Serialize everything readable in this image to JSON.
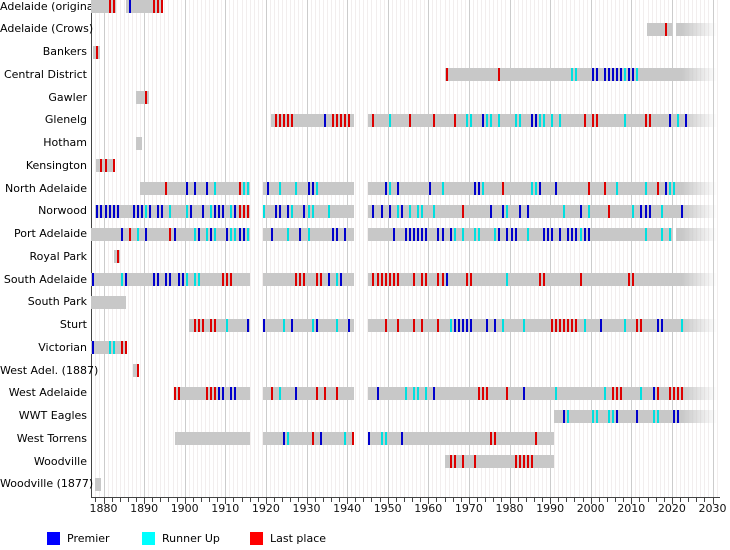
{
  "chart_data": {
    "type": "timeline",
    "x_axis": {
      "tick_label_years": [
        1880,
        1890,
        1900,
        1910,
        1920,
        1930,
        1940,
        1950,
        1960,
        1970,
        1980,
        1990,
        2000,
        2010,
        2020,
        2030
      ],
      "minor_tick_step": 2,
      "range": [
        1877,
        2031
      ]
    },
    "legend": [
      {
        "label": "Premier",
        "color": "#0000ff"
      },
      {
        "label": "Runner Up",
        "color": "#00ffff"
      },
      {
        "label": "Last place",
        "color": "#ff0000"
      }
    ],
    "mark_colors": {
      "premier": "#0000cc",
      "runner_up": "#00e0e0",
      "last": "#dd0000"
    },
    "bar_color": "#c8c8c8",
    "grid_minor_color": "#f2eeee",
    "grid_major_color": "#cccccc",
    "teams": [
      {
        "name": "Adelaide (original)",
        "segments": [
          [
            1877,
            1883
          ],
          [
            1885.5,
            1894.7
          ]
        ],
        "fade": false,
        "premier": [
          1886
        ],
        "runner_up": [],
        "last": [
          1881,
          1882,
          1892,
          1893,
          1894
        ]
      },
      {
        "name": "Adelaide (Crows)",
        "segments": [
          [
            2013.8,
            2020
          ],
          [
            2021,
            2022.5
          ]
        ],
        "fade": true,
        "premier": [],
        "runner_up": [],
        "last": [
          2018
        ]
      },
      {
        "name": "Bankers",
        "segments": [
          [
            1877.4,
            1879.2
          ]
        ],
        "fade": false,
        "premier": [],
        "runner_up": [],
        "last": [
          1878
        ]
      },
      {
        "name": "Central District",
        "segments": [
          [
            1964,
            2022.5
          ]
        ],
        "fade": true,
        "premier": [
          2000,
          2001,
          2003,
          2004,
          2005,
          2006,
          2007,
          2009,
          2010
        ],
        "runner_up": [
          1995,
          1996,
          2008,
          2011
        ],
        "last": [
          1964,
          1977
        ]
      },
      {
        "name": "Gawler",
        "segments": [
          [
            1888,
            1891.3
          ]
        ],
        "fade": false,
        "premier": [],
        "runner_up": [],
        "last": [
          1890
        ]
      },
      {
        "name": "Glenelg",
        "segments": [
          [
            1921.3,
            1941.7
          ],
          [
            1945.2,
            2022.5
          ]
        ],
        "fade": true,
        "premier": [
          1934,
          1973,
          1985,
          1986,
          2019,
          2023
        ],
        "runner_up": [
          1950,
          1969,
          1970,
          1974,
          1975,
          1977,
          1981,
          1982,
          1987,
          1988,
          1990,
          1992,
          2008,
          2021
        ],
        "last": [
          1922,
          1923,
          1924,
          1925,
          1926,
          1936,
          1937,
          1938,
          1939,
          1940,
          1946,
          1955,
          1961,
          1966,
          1998,
          2000,
          2001,
          2013,
          2014
        ]
      },
      {
        "name": "Hotham",
        "segments": [
          [
            1888,
            1889.4
          ]
        ],
        "fade": false,
        "premier": [],
        "runner_up": [],
        "last": []
      },
      {
        "name": "Kensington",
        "segments": [
          [
            1878.2,
            1882.6
          ]
        ],
        "fade": false,
        "premier": [],
        "runner_up": [],
        "last": [
          1879,
          1880,
          1882
        ]
      },
      {
        "name": "North Adelaide",
        "segments": [
          [
            1889,
            1916.2
          ],
          [
            1919.3,
            1941.7
          ],
          [
            1945.2,
            2022.5
          ]
        ],
        "fade": true,
        "premier": [
          1900,
          1902,
          1905,
          1920,
          1930,
          1931,
          1949,
          1952,
          1960,
          1971,
          1972,
          1987,
          1991,
          2018
        ],
        "runner_up": [
          1907,
          1914,
          1915,
          1923,
          1927,
          1932,
          1950,
          1963,
          1973,
          1985,
          1986,
          2006,
          2013,
          2019,
          2020
        ],
        "last": [
          1895,
          1913,
          1978,
          1999,
          2003,
          2016
        ]
      },
      {
        "name": "Norwood",
        "segments": [
          [
            1878,
            1916.2
          ],
          [
            1919.3,
            1941.7
          ],
          [
            1945.2,
            2022.5
          ]
        ],
        "fade": true,
        "premier": [
          1878,
          1879,
          1880,
          1881,
          1882,
          1883,
          1887,
          1888,
          1889,
          1891,
          1893,
          1894,
          1901,
          1904,
          1907,
          1908,
          1909,
          1912,
          1922,
          1923,
          1925,
          1929,
          1946,
          1948,
          1950,
          1953,
          1975,
          1978,
          1982,
          1984,
          1997,
          2012,
          2013,
          2014,
          2022
        ],
        "runner_up": [
          1890,
          1896,
          1900,
          1906,
          1911,
          1919,
          1926,
          1930,
          1931,
          1935,
          1952,
          1955,
          1957,
          1958,
          1961,
          1979,
          1993,
          1999,
          2010,
          2017
        ],
        "last": [
          1913,
          1914,
          1915,
          1968,
          2004
        ]
      },
      {
        "name": "Port Adelaide",
        "segments": [
          [
            1877,
            1916.2
          ],
          [
            1919.3,
            1941.7
          ],
          [
            1945.2,
            2020
          ],
          [
            2021,
            2022.5
          ]
        ],
        "fade": true,
        "premier": [
          1884,
          1890,
          1897,
          1903,
          1906,
          1910,
          1913,
          1914,
          1921,
          1928,
          1936,
          1937,
          1939,
          1951,
          1954,
          1955,
          1956,
          1957,
          1958,
          1959,
          1962,
          1963,
          1965,
          1977,
          1979,
          1980,
          1981,
          1988,
          1989,
          1990,
          1992,
          1994,
          1995,
          1996,
          1998,
          1999
        ],
        "runner_up": [
          1888,
          1902,
          1905,
          1907,
          1911,
          1912,
          1915,
          1925,
          1930,
          1966,
          1968,
          1971,
          1972,
          1976,
          1984,
          1997,
          2013,
          2017,
          2019
        ],
        "last": [
          1886,
          1896
        ]
      },
      {
        "name": "Royal Park",
        "segments": [
          [
            1882.5,
            1884
          ]
        ],
        "fade": false,
        "premier": [],
        "runner_up": [],
        "last": [
          1883
        ]
      },
      {
        "name": "South Adelaide",
        "segments": [
          [
            1877,
            1916.2
          ],
          [
            1919.3,
            1941.7
          ],
          [
            1945.2,
            2022.5
          ]
        ],
        "fade": true,
        "premier": [
          1877,
          1885,
          1892,
          1893,
          1895,
          1896,
          1898,
          1899,
          1935,
          1938,
          1964
        ],
        "runner_up": [
          1884,
          1900,
          1902,
          1903,
          1937,
          1979
        ],
        "last": [
          1909,
          1910,
          1911,
          1927,
          1928,
          1929,
          1932,
          1933,
          1946,
          1947,
          1948,
          1949,
          1950,
          1951,
          1952,
          1956,
          1958,
          1959,
          1962,
          1963,
          1969,
          1970,
          1987,
          1988,
          1997,
          2009,
          2010
        ]
      },
      {
        "name": "South Park",
        "segments": [
          [
            1877,
            1885.5
          ]
        ],
        "fade": false,
        "premier": [],
        "runner_up": [],
        "last": []
      },
      {
        "name": "Sturt",
        "segments": [
          [
            1901,
            1916.2
          ],
          [
            1919.3,
            1941.7
          ],
          [
            1945.2,
            2022.5
          ]
        ],
        "fade": true,
        "premier": [
          1915,
          1919,
          1926,
          1932,
          1940,
          1966,
          1967,
          1968,
          1969,
          1970,
          1974,
          1976,
          2002,
          2016,
          2017
        ],
        "runner_up": [
          1910,
          1924,
          1931,
          1937,
          1965,
          1978,
          1983,
          1998,
          2008,
          2022
        ],
        "last": [
          1902,
          1903,
          1904,
          1906,
          1907,
          1949,
          1952,
          1956,
          1958,
          1962,
          1990,
          1991,
          1992,
          1993,
          1994,
          1995,
          1996,
          2011,
          2012
        ]
      },
      {
        "name": "Victorian",
        "segments": [
          [
            1877,
            1885.5
          ]
        ],
        "fade": false,
        "premier": [
          1877
        ],
        "runner_up": [
          1881,
          1882
        ],
        "last": [
          1884,
          1885
        ]
      },
      {
        "name": "West Adel. (1887)",
        "segments": [
          [
            1887.3,
            1888.8
          ]
        ],
        "fade": false,
        "premier": [],
        "runner_up": [],
        "last": [
          1888
        ]
      },
      {
        "name": "West Adelaide",
        "segments": [
          [
            1897.5,
            1916.2
          ],
          [
            1919.3,
            1941.7
          ],
          [
            1945.2,
            2022.5
          ]
        ],
        "fade": true,
        "premier": [
          1908,
          1909,
          1911,
          1912,
          1927,
          1947,
          1961,
          1983,
          2015
        ],
        "runner_up": [
          1923,
          1954,
          1956,
          1957,
          1959,
          1991,
          2003,
          2012
        ],
        "last": [
          1897,
          1898,
          1905,
          1906,
          1907,
          1921,
          1932,
          1934,
          1937,
          1972,
          1973,
          1974,
          1979,
          2005,
          2006,
          2007,
          2016,
          2019,
          2020,
          2021,
          2022
        ]
      },
      {
        "name": "WWT Eagles",
        "segments": [
          [
            1991,
            2022.5
          ]
        ],
        "fade": true,
        "premier": [
          1993,
          2006,
          2011,
          2020,
          2021
        ],
        "runner_up": [
          1994,
          2000,
          2001,
          2004,
          2005,
          2015,
          2016
        ],
        "last": []
      },
      {
        "name": "West Torrens",
        "segments": [
          [
            1897.5,
            1916.2
          ],
          [
            1919.3,
            1941.7
          ],
          [
            1945.2,
            1991
          ]
        ],
        "fade": false,
        "premier": [
          1924,
          1933,
          1945,
          1953
        ],
        "runner_up": [
          1925,
          1939,
          1948,
          1949
        ],
        "last": [
          1931,
          1941,
          1975,
          1976,
          1986
        ]
      },
      {
        "name": "Woodville",
        "segments": [
          [
            1964,
            1991
          ]
        ],
        "fade": false,
        "premier": [],
        "runner_up": [],
        "last": [
          1965,
          1966,
          1968,
          1971,
          1981,
          1982,
          1983,
          1984,
          1985
        ]
      },
      {
        "name": "Woodville (1877)",
        "segments": [
          [
            1877.8,
            1879.3
          ]
        ],
        "fade": false,
        "premier": [],
        "runner_up": [],
        "last": []
      }
    ]
  }
}
